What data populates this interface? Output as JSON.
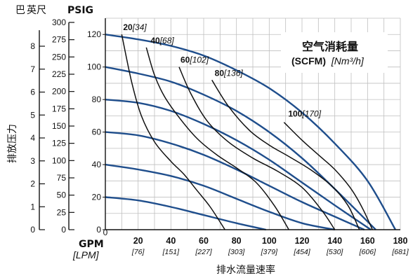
{
  "chart_data": {
    "type": "line",
    "xlabel": "排水流量速率",
    "x_unit_label": "GPM",
    "x_unit_label_alt": "[LPM]",
    "x_ticks": [
      {
        "value": 0,
        "label": "0",
        "alt": ""
      },
      {
        "value": 20,
        "label": "20",
        "alt": "[76]"
      },
      {
        "value": 40,
        "label": "40",
        "alt": "[151]"
      },
      {
        "value": 60,
        "label": "60",
        "alt": "[227]"
      },
      {
        "value": 80,
        "label": "80",
        "alt": "[303]"
      },
      {
        "value": 100,
        "label": "100",
        "alt": "[379]"
      },
      {
        "value": 120,
        "label": "120",
        "alt": "[454]"
      },
      {
        "value": 140,
        "label": "140",
        "alt": "[530]"
      },
      {
        "value": 160,
        "label": "160",
        "alt": "[606]"
      },
      {
        "value": 180,
        "label": "180",
        "alt": "[681]"
      }
    ],
    "xlim": [
      0,
      180
    ],
    "ylabel": "排放压力",
    "y_unit_labels": [
      "巴",
      "英尺",
      "PSIG"
    ],
    "ylim": [
      0,
      130
    ],
    "y_ticks_ft": [
      0,
      25,
      50,
      75,
      100,
      125,
      150,
      175,
      200,
      225,
      250,
      275,
      300
    ],
    "y_ticks_bar": [
      0,
      1,
      2,
      3,
      4,
      5,
      6,
      7,
      8
    ],
    "y_ticks_psig": [
      0,
      20,
      40,
      60,
      80,
      100,
      120
    ],
    "grid": true,
    "legend_title": "空气消耗量",
    "legend_subtitle": "(SCFM)",
    "legend_subtitle_alt": "[Nm³/h]",
    "series": [
      {
        "group": "air-inlet-pressure",
        "name": "120 psig",
        "x": [
          0,
          20,
          40,
          60,
          80,
          100,
          120,
          140,
          160,
          177
        ],
        "y": [
          120,
          117,
          113,
          107,
          98,
          87,
          72,
          53,
          30,
          0
        ]
      },
      {
        "group": "air-inlet-pressure",
        "name": "100 psig",
        "x": [
          0,
          20,
          40,
          60,
          80,
          100,
          120,
          140,
          165
        ],
        "y": [
          100,
          96,
          91,
          83,
          73,
          60,
          44,
          25,
          0
        ]
      },
      {
        "group": "air-inlet-pressure",
        "name": "80 psig",
        "x": [
          0,
          20,
          40,
          60,
          80,
          100,
          120,
          140,
          162
        ],
        "y": [
          80,
          78,
          73,
          65,
          55,
          43,
          29,
          15,
          0
        ]
      },
      {
        "group": "air-inlet-pressure",
        "name": "60 psig",
        "x": [
          0,
          20,
          40,
          60,
          80,
          100,
          120,
          140,
          158
        ],
        "y": [
          60,
          58,
          53,
          46,
          37,
          27,
          17,
          8,
          0
        ]
      },
      {
        "group": "air-inlet-pressure",
        "name": "40 psig",
        "x": [
          0,
          20,
          40,
          60,
          80,
          100,
          120,
          140
        ],
        "y": [
          40,
          37,
          33,
          27,
          19,
          11,
          4,
          0
        ]
      },
      {
        "group": "air-inlet-pressure",
        "name": "20 psig",
        "x": [
          0,
          20,
          40,
          60,
          80,
          98
        ],
        "y": [
          20,
          18,
          14,
          9,
          4,
          0
        ]
      },
      {
        "group": "air-consumption",
        "name": "20",
        "label": "20",
        "label_alt": "[34]",
        "x": [
          10,
          16,
          22,
          30,
          40,
          48,
          56,
          64,
          73
        ],
        "y": [
          120,
          91,
          70,
          54,
          42,
          34,
          24,
          14,
          0
        ]
      },
      {
        "group": "air-consumption",
        "name": "40",
        "label": "40",
        "label_alt": "[68]",
        "x": [
          25,
          30,
          36,
          45,
          56,
          68,
          80,
          92,
          103,
          112
        ],
        "y": [
          112,
          95,
          82,
          69,
          56,
          46,
          38,
          29,
          15,
          0
        ]
      },
      {
        "group": "air-consumption",
        "name": "60",
        "label": "60",
        "label_alt": "[102]",
        "x": [
          45,
          52,
          62,
          75,
          90,
          105,
          120,
          132,
          140
        ],
        "y": [
          100,
          84,
          67,
          54,
          44,
          36,
          26,
          12,
          0
        ]
      },
      {
        "group": "air-consumption",
        "name": "80",
        "label": "80",
        "label_alt": "[136]",
        "x": [
          65,
          75,
          88,
          100,
          112,
          125,
          138,
          148,
          155
        ],
        "y": [
          92,
          76,
          61,
          52,
          45,
          37,
          27,
          15,
          0
        ]
      },
      {
        "group": "air-consumption",
        "name": "100",
        "label": "100",
        "label_alt": "[170]",
        "x": [
          109,
          120,
          130,
          140,
          150,
          157,
          163
        ],
        "y": [
          66,
          55,
          46,
          37,
          25,
          13,
          0
        ]
      }
    ],
    "colors": {
      "pressure_curve": "#1f4e8c",
      "consumption_curve": "#111111",
      "grid": "#bfbfbf",
      "axis": "#111111"
    }
  }
}
